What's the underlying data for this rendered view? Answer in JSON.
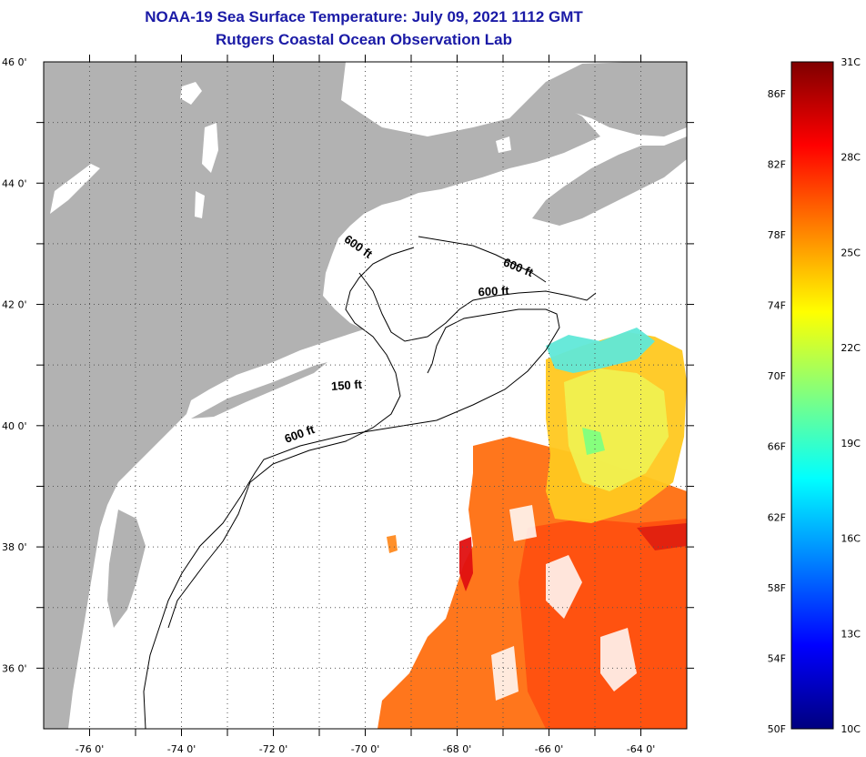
{
  "title": {
    "line1": "NOAA-19 Sea Surface Temperature:  July 09, 2021 1112 GMT",
    "line2": "Rutgers Coastal Ocean Observation Lab"
  },
  "map": {
    "lon_range": [
      -77,
      -63
    ],
    "lat_range": [
      35,
      46
    ],
    "lon_ticks": [
      {
        "value": -76,
        "label": "-76 0'"
      },
      {
        "value": -74,
        "label": "-74 0'"
      },
      {
        "value": -72,
        "label": "-72 0'"
      },
      {
        "value": -70,
        "label": "-70 0'"
      },
      {
        "value": -68,
        "label": "-68 0'"
      },
      {
        "value": -66,
        "label": "-66 0'"
      },
      {
        "value": -64,
        "label": "-64 0'"
      }
    ],
    "lat_ticks": [
      {
        "value": 46,
        "label": "46 0'"
      },
      {
        "value": 44,
        "label": "44 0'"
      },
      {
        "value": 42,
        "label": "42 0'"
      },
      {
        "value": 40,
        "label": "40 0'"
      },
      {
        "value": 38,
        "label": "38 0'"
      },
      {
        "value": 36,
        "label": "36 0'"
      }
    ],
    "contour_labels": [
      {
        "text": "600 ft",
        "lon": -70.2,
        "lat": 42.9,
        "rotate": 35
      },
      {
        "text": "600 ft",
        "lon": -66.7,
        "lat": 42.55,
        "rotate": 22
      },
      {
        "text": "600 ft",
        "lon": -67.2,
        "lat": 42.15,
        "rotate": -3
      },
      {
        "text": "150 ft",
        "lon": -70.4,
        "lat": 40.6,
        "rotate": -4
      },
      {
        "text": "600 ft",
        "lon": -71.4,
        "lat": 39.8,
        "rotate": -20
      }
    ],
    "colors": {
      "land": "#b2b2b2",
      "grid": "#555555",
      "contour": "#000000"
    }
  },
  "colorbar": {
    "f_labels": [
      {
        "value": 50,
        "label": "50F"
      },
      {
        "value": 54,
        "label": "54F"
      },
      {
        "value": 58,
        "label": "58F"
      },
      {
        "value": 62,
        "label": "62F"
      },
      {
        "value": 66,
        "label": "66F"
      },
      {
        "value": 70,
        "label": "70F"
      },
      {
        "value": 74,
        "label": "74F"
      },
      {
        "value": 78,
        "label": "78F"
      },
      {
        "value": 82,
        "label": "82F"
      },
      {
        "value": 86,
        "label": "86F"
      }
    ],
    "c_labels": [
      {
        "value": 10,
        "label": "10C"
      },
      {
        "value": 13,
        "label": "13C"
      },
      {
        "value": 16,
        "label": "16C"
      },
      {
        "value": 19,
        "label": "19C"
      },
      {
        "value": 22,
        "label": "22C"
      },
      {
        "value": 25,
        "label": "25C"
      },
      {
        "value": 28,
        "label": "28C"
      },
      {
        "value": 31,
        "label": "31C"
      }
    ],
    "range_c": [
      10,
      31
    ],
    "gradient": [
      "#00007f",
      "#0000ff",
      "#0080ff",
      "#00ffff",
      "#80ff80",
      "#ffff00",
      "#ff8000",
      "#ff0000",
      "#7f0000"
    ]
  }
}
